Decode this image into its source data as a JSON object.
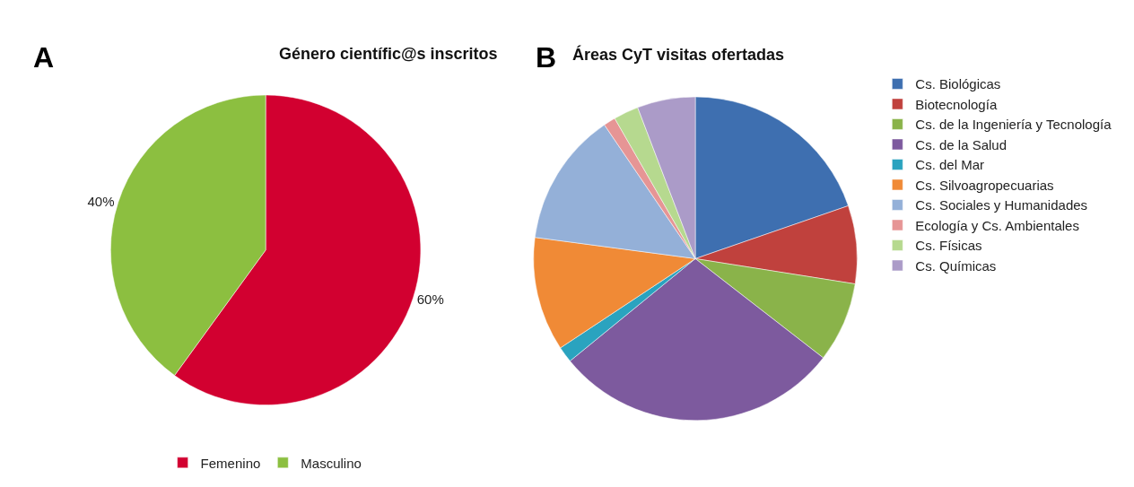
{
  "chart_data": [
    {
      "type": "pie",
      "title": "Género científic@s inscritos",
      "annotations": [
        "A"
      ],
      "categories": [
        "Femenino",
        "Masculino"
      ],
      "values": [
        60,
        40
      ],
      "colors": [
        "#d20030",
        "#8cbf40"
      ],
      "value_labels": [
        "60%",
        "40%"
      ],
      "legend": "bottom"
    },
    {
      "type": "pie",
      "title": "Áreas CyT visitas ofertadas",
      "annotations": [
        "B"
      ],
      "categories": [
        "Cs. Biológicas",
        "Biotecnología",
        "Cs. de la Ingeniería y Tecnología",
        "Cs. de la Salud",
        "Cs. del Mar",
        "Cs. Silvoagropecuarias",
        "Cs. Sociales y Humanidades",
        "Ecología y Cs. Ambientales",
        "Cs. Físicas",
        "Cs. Químicas"
      ],
      "values": [
        19.7,
        7.8,
        8.0,
        28.6,
        1.6,
        11.4,
        13.4,
        1.2,
        2.5,
        5.8
      ],
      "colors": [
        "#3e6fb0",
        "#c0413d",
        "#8ab34a",
        "#7d5a9e",
        "#2aa3bf",
        "#f08a36",
        "#94b0d8",
        "#e69595",
        "#b6d98f",
        "#ab9bc8"
      ],
      "legend": "right"
    }
  ]
}
